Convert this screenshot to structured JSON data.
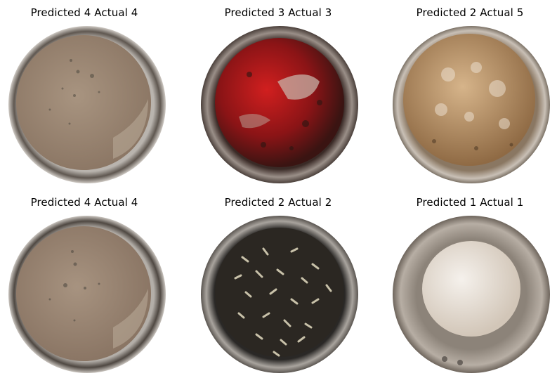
{
  "grid": [
    {
      "title": "Predicted 4 Actual 4",
      "contents": "murky-brown-liquid"
    },
    {
      "title": "Predicted 3 Actual 3",
      "contents": "red-spice-liquid"
    },
    {
      "title": "Predicted 2 Actual 5",
      "contents": "foamy-brown-liquid"
    },
    {
      "title": "Predicted 4 Actual 4",
      "contents": "murky-brown-liquid"
    },
    {
      "title": "Predicted 2 Actual 2",
      "contents": "dark-seeds-liquid"
    },
    {
      "title": "Predicted 1 Actual 1",
      "contents": "clear-water"
    }
  ]
}
